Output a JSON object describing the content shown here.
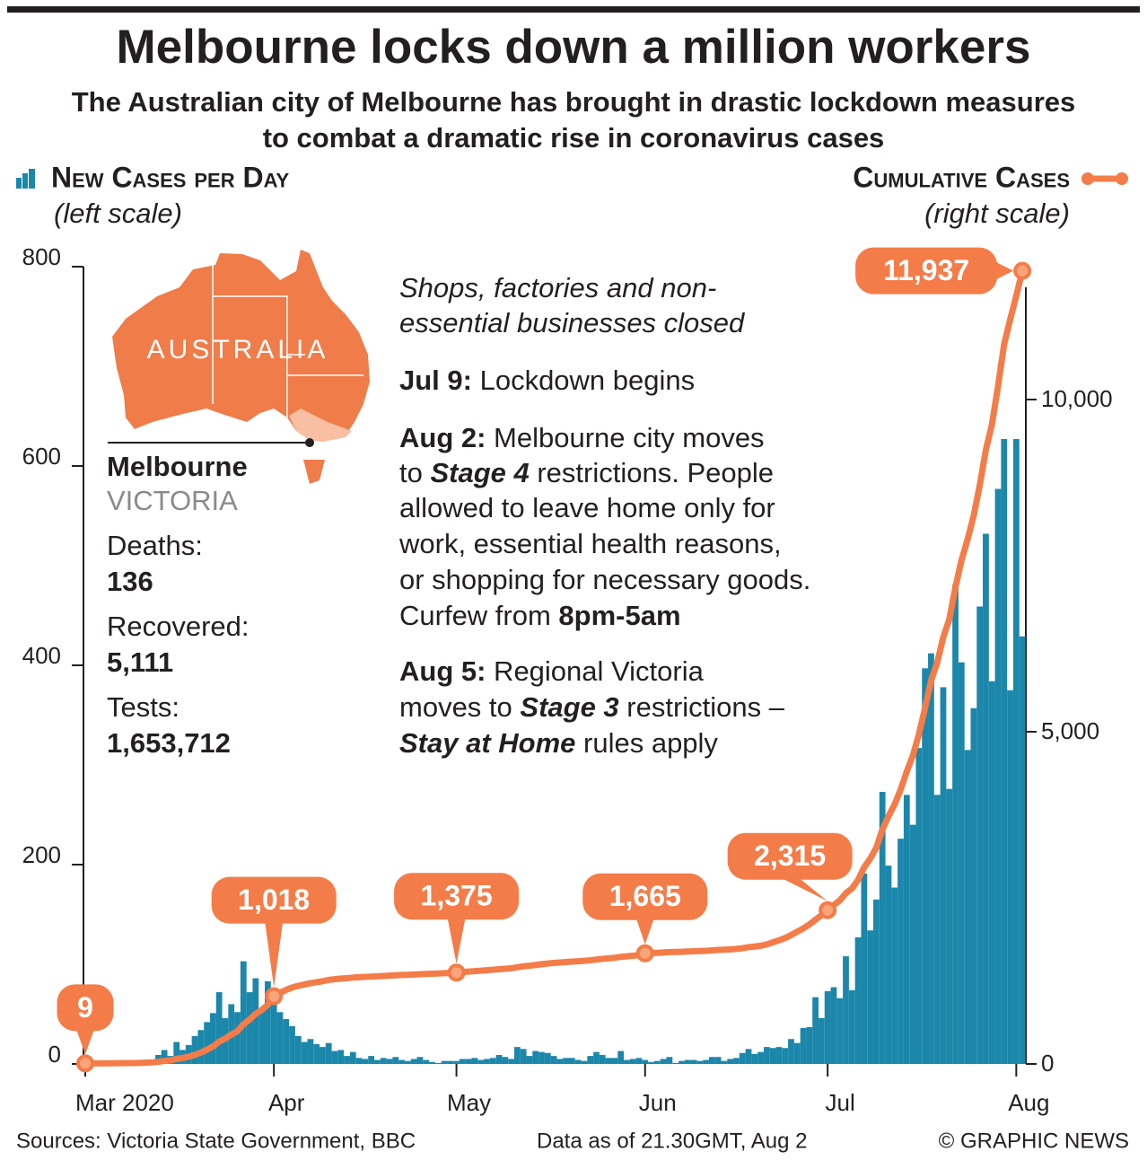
{
  "chart_data": {
    "type": "bar-line",
    "title": "Melbourne locks down a million workers",
    "subtitle": "The Australian city of Melbourne has brought in drastic lockdown measures to combat a dramatic rise in coronavirus cases",
    "categories": [
      "Mar 2020",
      null,
      null,
      null,
      null,
      null,
      null,
      null,
      null,
      null,
      null,
      null,
      null,
      null,
      null,
      null,
      null,
      null,
      null,
      null,
      null,
      null,
      null,
      null,
      null,
      null,
      null,
      null,
      null,
      null,
      null,
      "Apr",
      null,
      null,
      null,
      null,
      null,
      null,
      null,
      null,
      null,
      null,
      null,
      null,
      null,
      null,
      null,
      null,
      null,
      null,
      null,
      null,
      null,
      null,
      null,
      null,
      null,
      null,
      null,
      null,
      null,
      "May",
      null,
      null,
      null,
      null,
      null,
      null,
      null,
      null,
      null,
      null,
      null,
      null,
      null,
      null,
      null,
      null,
      null,
      null,
      null,
      null,
      null,
      null,
      null,
      null,
      null,
      null,
      null,
      null,
      null,
      null,
      "Jun",
      null,
      null,
      null,
      null,
      null,
      null,
      null,
      null,
      null,
      null,
      null,
      null,
      null,
      null,
      null,
      null,
      null,
      null,
      null,
      null,
      null,
      null,
      null,
      null,
      null,
      null,
      null,
      null,
      null,
      "Jul",
      null,
      null,
      null,
      null,
      null,
      null,
      null,
      null,
      null,
      null,
      null,
      null,
      null,
      null,
      null,
      null,
      null,
      null,
      null,
      null,
      null,
      null,
      null,
      null,
      null,
      null,
      null,
      null,
      null,
      null,
      "Aug",
      null
    ],
    "series": [
      {
        "name": "New Cases per Day",
        "scale_note": "(left scale)",
        "type": "bar",
        "color": "#1b87aa",
        "values": [
          0,
          0,
          0,
          1,
          0,
          1,
          0,
          2,
          1,
          2,
          4,
          3,
          9,
          14,
          8,
          22,
          14,
          19,
          28,
          34,
          42,
          51,
          72,
          46,
          60,
          52,
          103,
          72,
          86,
          56,
          83,
          60,
          52,
          45,
          38,
          28,
          22,
          25,
          20,
          17,
          21,
          13,
          14,
          8,
          12,
          6,
          5,
          8,
          4,
          6,
          5,
          7,
          4,
          3,
          5,
          7,
          4,
          2,
          1,
          3,
          3,
          3,
          5,
          5,
          6,
          4,
          5,
          6,
          9,
          7,
          5,
          17,
          15,
          8,
          13,
          12,
          11,
          8,
          5,
          6,
          6,
          4,
          3,
          8,
          12,
          9,
          6,
          6,
          13,
          4,
          5,
          6,
          4,
          2,
          3,
          5,
          7,
          1,
          3,
          4,
          4,
          3,
          4,
          7,
          7,
          3,
          5,
          6,
          11,
          15,
          10,
          12,
          17,
          16,
          17,
          16,
          25,
          21,
          36,
          37,
          67,
          46,
          73,
          77,
          66,
          108,
          74,
          127,
          191,
          134,
          165,
          273,
          199,
          177,
          226,
          270,
          240,
          317,
          397,
          412,
          270,
          378,
          276,
          481,
          403,
          315,
          357,
          459,
          532,
          384,
          577,
          627,
          375,
          627,
          429
        ]
      },
      {
        "name": "Cumulative Cases",
        "scale_note": "(right scale)",
        "type": "line",
        "axis": "y2",
        "color": "#f47c48",
        "values": [
          9,
          9,
          9,
          10,
          10,
          11,
          11,
          13,
          14,
          16,
          20,
          23,
          32,
          46,
          54,
          76,
          90,
          109,
          137,
          171,
          213,
          264,
          336,
          382,
          442,
          494,
          597,
          669,
          755,
          811,
          894,
          1018,
          1070,
          1115,
          1150,
          1175,
          1195,
          1215,
          1230,
          1245,
          1265,
          1275,
          1285,
          1290,
          1300,
          1305,
          1310,
          1315,
          1320,
          1325,
          1330,
          1335,
          1340,
          1342,
          1346,
          1350,
          1354,
          1358,
          1362,
          1366,
          1370,
          1375,
          1382,
          1390,
          1397,
          1403,
          1410,
          1418,
          1426,
          1433,
          1440,
          1455,
          1470,
          1478,
          1490,
          1502,
          1512,
          1520,
          1527,
          1534,
          1540,
          1546,
          1552,
          1560,
          1572,
          1582,
          1590,
          1598,
          1612,
          1620,
          1628,
          1640,
          1665,
          1669,
          1672,
          1677,
          1684,
          1685,
          1688,
          1692,
          1696,
          1699,
          1703,
          1710,
          1717,
          1720,
          1725,
          1731,
          1742,
          1757,
          1767,
          1779,
          1800,
          1830,
          1860,
          1895,
          1940,
          1990,
          2040,
          2100,
          2170,
          2240,
          2315,
          2390,
          2460,
          2570,
          2640,
          2770,
          2960,
          3090,
          3255,
          3530,
          3730,
          3905,
          4130,
          4400,
          4640,
          4960,
          5355,
          5770,
          6040,
          6420,
          6695,
          7175,
          7580,
          7895,
          8250,
          8710,
          9240,
          9625,
          10200,
          10830,
          11205,
          11560,
          11937
        ],
        "value_labels": [
          "9",
          null,
          null,
          null,
          null,
          null,
          null,
          null,
          null,
          null,
          null,
          null,
          null,
          null,
          null,
          null,
          null,
          null,
          null,
          null,
          null,
          null,
          null,
          null,
          null,
          null,
          null,
          null,
          null,
          null,
          null,
          "1,018",
          null,
          null,
          null,
          null,
          null,
          null,
          null,
          null,
          null,
          null,
          null,
          null,
          null,
          null,
          null,
          null,
          null,
          null,
          null,
          null,
          null,
          null,
          null,
          null,
          null,
          null,
          null,
          null,
          null,
          "1,375",
          null,
          null,
          null,
          null,
          null,
          null,
          null,
          null,
          null,
          null,
          null,
          null,
          null,
          null,
          null,
          null,
          null,
          null,
          null,
          null,
          null,
          null,
          null,
          null,
          null,
          null,
          null,
          null,
          null,
          null,
          "1,665",
          null,
          null,
          null,
          null,
          null,
          null,
          null,
          null,
          null,
          null,
          null,
          null,
          null,
          null,
          null,
          null,
          null,
          null,
          null,
          null,
          null,
          null,
          null,
          null,
          null,
          null,
          null,
          null,
          null,
          "2,315",
          null,
          null,
          null,
          null,
          null,
          null,
          null,
          null,
          null,
          null,
          null,
          null,
          null,
          null,
          null,
          null,
          null,
          null,
          null,
          null,
          null,
          null,
          null,
          null,
          null,
          null,
          null,
          null,
          null,
          null,
          null,
          "11,937"
        ]
      }
    ],
    "ylim": [
      0,
      800
    ],
    "yticks": [
      0,
      200,
      400,
      600,
      800
    ],
    "y2lim": [
      0,
      12000
    ],
    "y2ticks": [
      0,
      {
        "value": 5000,
        "label": "5,000"
      },
      {
        "value": 10000,
        "label": "10,000"
      }
    ],
    "map": {
      "label": "AUSTRALIA",
      "place": "Melbourne",
      "region": "VICTORIA"
    },
    "stats": [
      {
        "label": "Deaths:",
        "value": "136"
      },
      {
        "label": "Recovered:",
        "value": "5,111"
      },
      {
        "label": "Tests:",
        "value": "1,653,712"
      }
    ],
    "annotation": [
      [
        {
          "text": "Shops, factories and non-",
          "style": "i"
        }
      ],
      [
        {
          "text": "essential businesses closed",
          "style": "i"
        }
      ],
      [
        {
          "text": "Jul 9:",
          "style": "b"
        },
        {
          "text": " Lockdown begins"
        }
      ],
      [
        {
          "text": "Aug 2:",
          "style": "b"
        },
        {
          "text": " Melbourne city moves"
        }
      ],
      [
        {
          "text": "to "
        },
        {
          "text": "Stage 4",
          "style": "bi"
        },
        {
          "text": " restrictions. People"
        }
      ],
      [
        {
          "text": "allowed to leave home only for"
        }
      ],
      [
        {
          "text": "work, essential health reasons,"
        }
      ],
      [
        {
          "text": "or shopping for necessary goods."
        }
      ],
      [
        {
          "text": "Curfew from "
        },
        {
          "text": "8pm-5am",
          "style": "b"
        }
      ],
      [
        {
          "text": "Aug 5:",
          "style": "b"
        },
        {
          "text": " Regional Victoria"
        }
      ],
      [
        {
          "text": "moves to "
        },
        {
          "text": "Stage 3",
          "style": "bi"
        },
        {
          "text": " restrictions –"
        }
      ],
      [
        {
          "text": "Stay at Home",
          "style": "bi"
        },
        {
          "text": " rules apply"
        }
      ]
    ],
    "source": "Sources: Victoria State Government, BBC",
    "data_note": "Data as of 21.30GMT, Aug 2",
    "credit": "© GRAPHIC NEWS"
  }
}
